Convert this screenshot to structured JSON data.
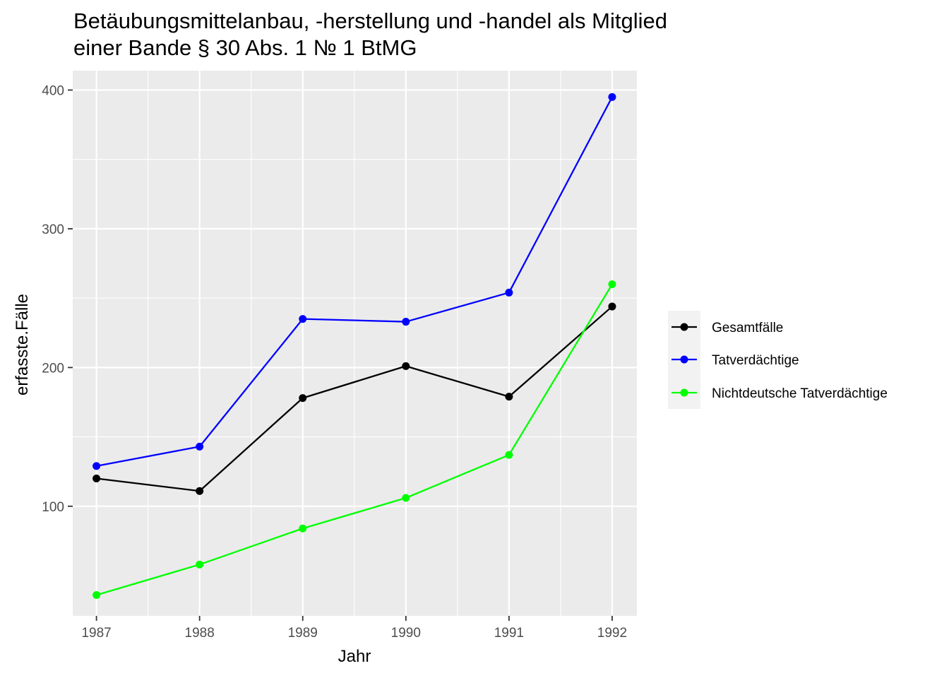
{
  "chart_data": {
    "type": "line",
    "title_lines": [
      "Betäubungsmittelanbau, -herstellung und -handel als Mitglied",
      "einer Bande § 30 Abs. 1 № 1 BtMG"
    ],
    "xlabel": "Jahr",
    "ylabel": "erfasste.Fälle",
    "x": [
      1987,
      1988,
      1989,
      1990,
      1991,
      1992
    ],
    "x_tick_labels": [
      "1987",
      "1988",
      "1989",
      "1990",
      "1991",
      "1992"
    ],
    "y_ticks": [
      100,
      200,
      300,
      400
    ],
    "y_tick_labels": [
      "100",
      "200",
      "300",
      "400"
    ],
    "xlim": [
      1986.77,
      1992.24
    ],
    "ylim": [
      21,
      414
    ],
    "grid": true,
    "legend_position": "right",
    "series": [
      {
        "name": "Gesamtfälle",
        "color": "#000000",
        "values": [
          120,
          111,
          178,
          201,
          179,
          244
        ]
      },
      {
        "name": "Tatverdächtige",
        "color": "#0000ff",
        "values": [
          129,
          143,
          235,
          233,
          254,
          395
        ]
      },
      {
        "name": "Nichtdeutsche Tatverdächtige",
        "color": "#00ff00",
        "values": [
          36,
          58,
          84,
          106,
          137,
          260
        ]
      }
    ],
    "colors": {
      "panel": "#ebebeb",
      "grid": "#ffffff",
      "tick_text": "#4d4d4d",
      "tick_mark": "#333333"
    }
  }
}
